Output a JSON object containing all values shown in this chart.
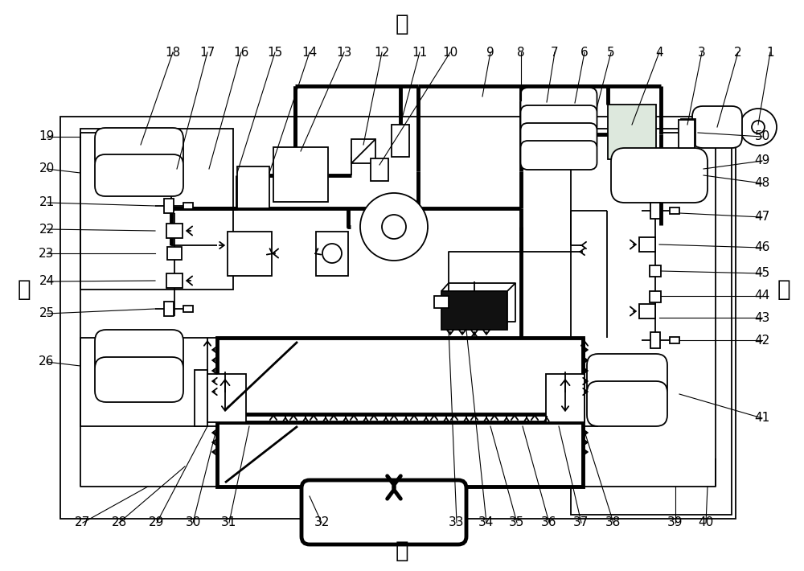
{
  "title_top": "左",
  "title_bottom": "右",
  "label_front": "前",
  "label_rear": "后",
  "bg_color": "#ffffff",
  "lc": "#000000",
  "lw_bold": 3.5,
  "lw_med": 2.0,
  "lw_thin": 1.3,
  "fs_label": 11,
  "fs_dir": 20
}
